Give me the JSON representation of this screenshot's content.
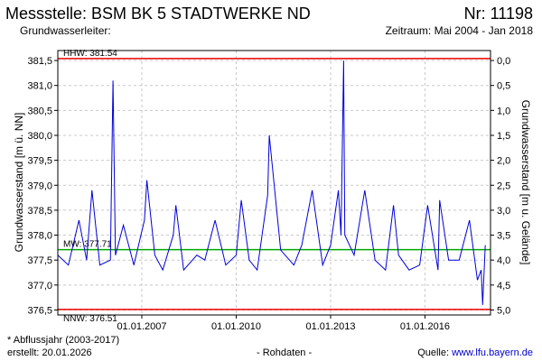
{
  "header": {
    "title": "Messstelle: BSM BK 5 STADTWERKE ND",
    "number": "Nr: 11198",
    "aquifer": "Grundwasserleiter:",
    "period": "Zeitraum: Mai 2004 - Jan 2018"
  },
  "footer": {
    "footnote": "* Abflussjahr (2003-2017)",
    "created": "erstellt:  20.01.2026",
    "rawdata": "- Rohdaten -",
    "source_label": "Quelle: ",
    "source_link": "www.lfu.bayern.de"
  },
  "colors": {
    "series": "#0000dd",
    "hhw": "#ee0000",
    "nnw": "#ee0000",
    "mw": "#00aa00",
    "grid": "#c8c8c8"
  },
  "chart_data": {
    "type": "line",
    "ylabel": "Grundwasserstand [m ü. NN]",
    "y2label": "Grundwasserstand [m u. Gelände]",
    "ylim": [
      376.4,
      381.7
    ],
    "yticks": [
      "376,5",
      "377,0",
      "377,5",
      "378,0",
      "378,5",
      "379,0",
      "379,5",
      "380,0",
      "380,5",
      "381,0",
      "381,5"
    ],
    "y2ticks": [
      "0,0",
      "0,5",
      "1,0",
      "1,5",
      "2,0",
      "2,5",
      "3,0",
      "3,5",
      "4,0",
      "4,5",
      "5,0"
    ],
    "xlim": [
      "2004-05-01",
      "2018-01-31"
    ],
    "xticks": [
      "01.01.2007",
      "01.01.2010",
      "01.01.2013",
      "01.01.2016"
    ],
    "grid": true,
    "reference_lines": [
      {
        "label": "HHW: 381.54",
        "value": 381.54
      },
      {
        "label": "MW: 377.71",
        "value": 377.71
      },
      {
        "label": "NNW: 376.51",
        "value": 376.51
      }
    ],
    "series": [
      {
        "x": [
          "2004-05-01",
          "2004-09-01",
          "2005-01-01",
          "2005-04-01",
          "2005-06-01",
          "2005-09-01",
          "2006-01-01",
          "2006-02-01",
          "2006-03-01",
          "2006-06-01",
          "2006-10-01",
          "2007-02-01",
          "2007-03-01",
          "2007-06-01",
          "2007-09-01",
          "2008-01-01",
          "2008-02-01",
          "2008-05-01",
          "2008-10-01",
          "2009-01-01",
          "2009-05-01",
          "2009-09-01",
          "2010-01-01",
          "2010-03-01",
          "2010-06-01",
          "2010-09-01",
          "2011-01-01",
          "2011-01-20",
          "2011-06-01",
          "2011-11-01",
          "2012-02-01",
          "2012-06-01",
          "2012-10-01",
          "2013-01-01",
          "2013-04-01",
          "2013-05-01",
          "2013-06-01",
          "2013-06-15",
          "2013-10-01",
          "2014-02-01",
          "2014-06-01",
          "2014-10-01",
          "2015-01-01",
          "2015-03-01",
          "2015-07-01",
          "2015-11-01",
          "2016-02-01",
          "2016-06-01",
          "2016-06-20",
          "2016-10-01",
          "2017-02-01",
          "2017-06-01",
          "2017-09-01",
          "2017-10-15",
          "2017-11-01",
          "2017-12-01"
        ],
        "values": [
          377.6,
          377.4,
          378.3,
          377.5,
          378.9,
          377.4,
          377.5,
          381.1,
          377.6,
          378.2,
          377.4,
          378.3,
          379.1,
          377.6,
          377.3,
          378.0,
          378.6,
          377.3,
          377.6,
          377.5,
          378.3,
          377.4,
          377.6,
          378.7,
          377.5,
          377.3,
          378.8,
          380.0,
          377.7,
          377.4,
          377.8,
          378.9,
          377.4,
          377.8,
          378.9,
          378.0,
          381.5,
          378.0,
          377.6,
          378.9,
          377.5,
          377.3,
          378.6,
          377.6,
          377.3,
          377.4,
          378.6,
          377.3,
          378.7,
          377.5,
          377.5,
          378.3,
          377.1,
          377.3,
          376.6,
          377.8
        ]
      }
    ]
  }
}
